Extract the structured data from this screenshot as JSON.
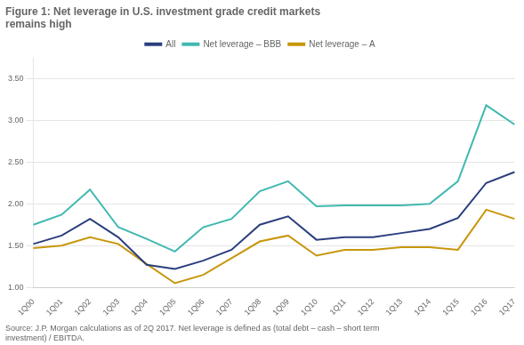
{
  "chart_data": {
    "type": "line",
    "title": "Figure 1: Net leverage in U.S. investment grade credit markets\nremains high",
    "annotations": [
      "Source: J.P. Morgan calculations as of 2Q 2017. Net leverage is defined as (total debt – cash – short term\ninvestment) / EBITDA."
    ],
    "categories": [
      "1Q00",
      "1Q01",
      "1Q02",
      "1Q03",
      "1Q04",
      "1Q05",
      "1Q06",
      "1Q07",
      "1Q08",
      "1Q09",
      "1Q10",
      "1Q11",
      "1Q12",
      "1Q13",
      "1Q14",
      "1Q15",
      "1Q16",
      "1Q17"
    ],
    "series": [
      {
        "name": "All",
        "color": "#2B3F7E",
        "values": [
          1.52,
          1.62,
          1.82,
          1.6,
          1.27,
          1.22,
          1.32,
          1.45,
          1.75,
          1.85,
          1.57,
          1.6,
          1.6,
          1.65,
          1.7,
          1.83,
          2.25,
          2.38
        ]
      },
      {
        "name": "Net leverage – BBB",
        "color": "#40B8B0",
        "values": [
          1.75,
          1.87,
          2.17,
          1.72,
          1.58,
          1.43,
          1.72,
          1.82,
          2.15,
          2.27,
          1.97,
          1.98,
          1.98,
          1.98,
          2.0,
          2.27,
          3.18,
          2.95
        ]
      },
      {
        "name": "Net leverage – A",
        "color": "#C8960C",
        "values": [
          1.47,
          1.5,
          1.6,
          1.52,
          1.28,
          1.05,
          1.15,
          1.35,
          1.55,
          1.62,
          1.38,
          1.45,
          1.45,
          1.48,
          1.48,
          1.45,
          1.93,
          1.82
        ]
      }
    ],
    "ylim": [
      1.0,
      3.75
    ],
    "yticks": [
      {
        "value": 1.0,
        "label": "1.00"
      },
      {
        "value": 1.5,
        "label": "1.50"
      },
      {
        "value": 2.0,
        "label": "2.00"
      },
      {
        "value": 2.5,
        "label": "2.50"
      },
      {
        "value": 3.0,
        "label": "3.00"
      },
      {
        "value": 3.5,
        "label": "3.50"
      }
    ],
    "grid": true,
    "legend": "top"
  }
}
